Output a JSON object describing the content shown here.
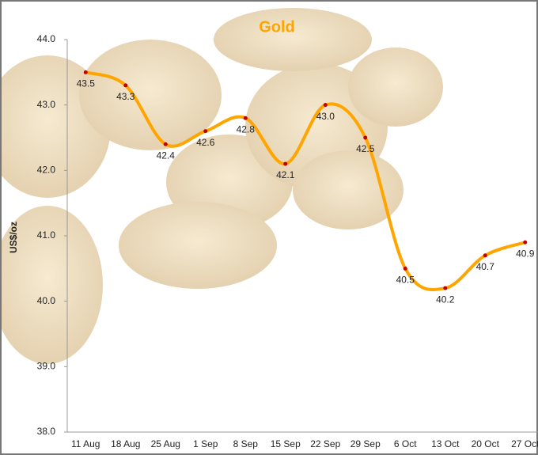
{
  "chart_data": {
    "type": "line",
    "title": "Gold",
    "y_label": "US$/oz",
    "categories": [
      "11 Aug",
      "18 Aug",
      "25 Aug",
      "1 Sep",
      "8 Sep",
      "15 Sep",
      "22 Sep",
      "29 Sep",
      "6 Oct",
      "13 Oct",
      "20 Oct",
      "27 Oct"
    ],
    "series": [
      {
        "name": "Gold",
        "color": "#ffa500",
        "marker_color": "#c00000",
        "values": [
          43.5,
          43.3,
          42.4,
          42.6,
          42.8,
          42.1,
          43.0,
          42.5,
          40.5,
          40.2,
          40.7,
          40.9
        ],
        "value_labels": [
          "43.5",
          "43.3",
          "42.4",
          "42.6",
          "42.8",
          "42.1",
          "43.0",
          "42.5",
          "40.5",
          "40.2",
          "40.7",
          "40.9"
        ]
      }
    ],
    "ylim": [
      38,
      44
    ],
    "yticks": [
      {
        "value": 38,
        "label": "38.0"
      },
      {
        "value": 39,
        "label": "39.0"
      },
      {
        "value": 40,
        "label": "40.0"
      },
      {
        "value": 41,
        "label": "41.0"
      },
      {
        "value": 42,
        "label": "42.0"
      },
      {
        "value": 43,
        "label": "43.0"
      },
      {
        "value": 44,
        "label": "44.0"
      }
    ],
    "smooth": true
  }
}
